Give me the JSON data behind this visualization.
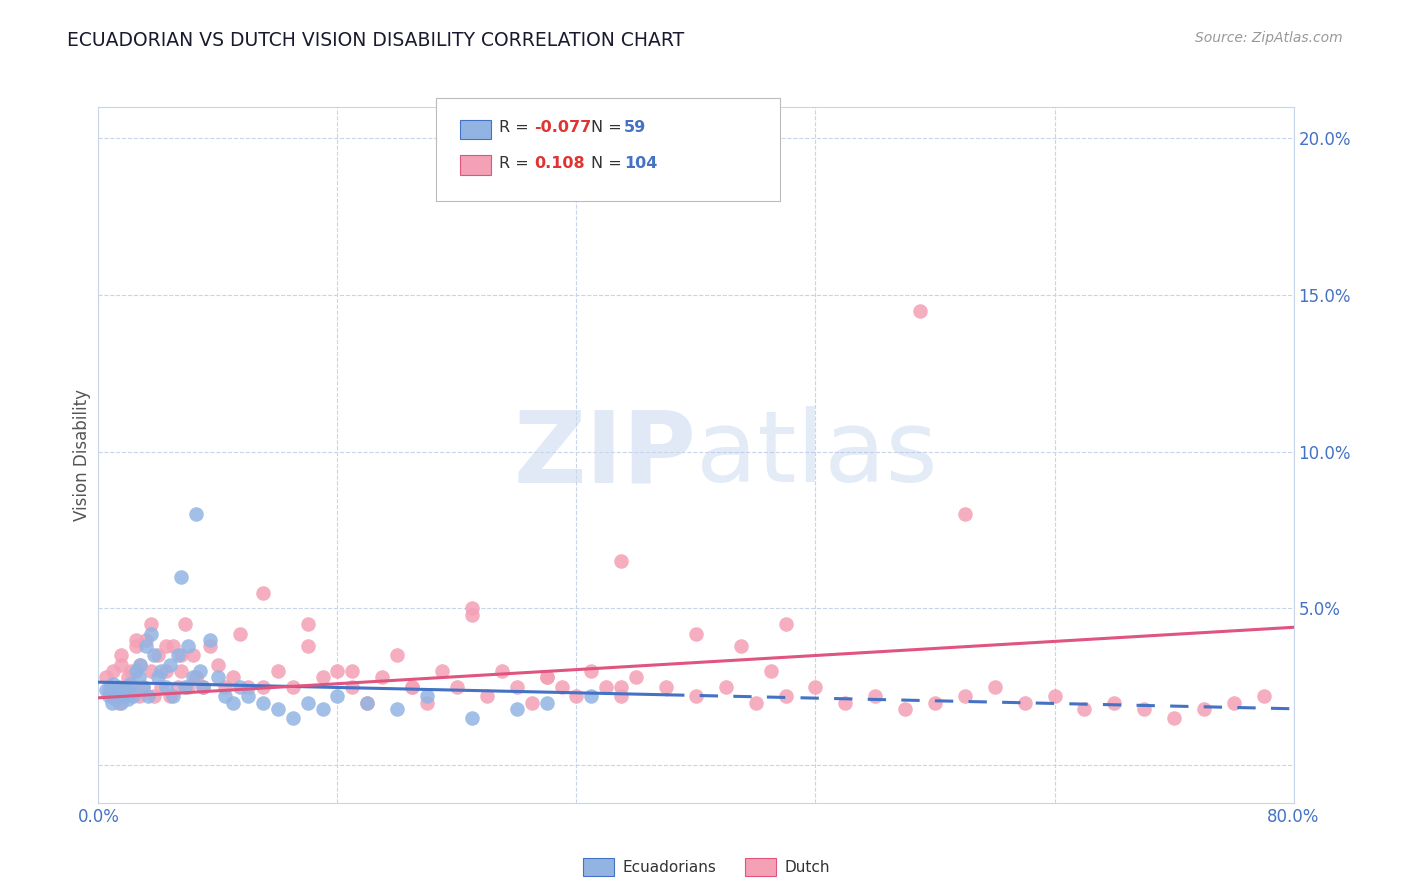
{
  "title": "ECUADORIAN VS DUTCH VISION DISABILITY CORRELATION CHART",
  "source": "Source: ZipAtlas.com",
  "ylabel": "Vision Disability",
  "watermark_zip": "ZIP",
  "watermark_atlas": "atlas",
  "ecuadorians_color": "#92b4e3",
  "dutch_color": "#f4a0b5",
  "trendline_ecu_color": "#4472c4",
  "trendline_dutch_color": "#e05580",
  "background_color": "#ffffff",
  "grid_color": "#c8d4e8",
  "xlim": [
    0.0,
    0.8
  ],
  "ylim": [
    -0.012,
    0.21
  ],
  "ecu_trendline": [
    0.0,
    0.0265,
    0.8,
    0.018
  ],
  "dutch_trendline": [
    0.0,
    0.0215,
    0.8,
    0.044
  ],
  "ecu_x": [
    0.005,
    0.007,
    0.008,
    0.009,
    0.01,
    0.01,
    0.011,
    0.012,
    0.013,
    0.014,
    0.015,
    0.016,
    0.017,
    0.018,
    0.019,
    0.02,
    0.021,
    0.022,
    0.023,
    0.025,
    0.027,
    0.028,
    0.03,
    0.032,
    0.033,
    0.035,
    0.037,
    0.04,
    0.042,
    0.045,
    0.048,
    0.05,
    0.053,
    0.055,
    0.058,
    0.06,
    0.063,
    0.065,
    0.068,
    0.07,
    0.075,
    0.08,
    0.085,
    0.09,
    0.095,
    0.1,
    0.11,
    0.12,
    0.13,
    0.14,
    0.15,
    0.16,
    0.18,
    0.2,
    0.22,
    0.25,
    0.28,
    0.3,
    0.33
  ],
  "ecu_y": [
    0.024,
    0.022,
    0.025,
    0.02,
    0.023,
    0.026,
    0.021,
    0.024,
    0.022,
    0.025,
    0.02,
    0.023,
    0.024,
    0.022,
    0.025,
    0.021,
    0.026,
    0.023,
    0.022,
    0.03,
    0.028,
    0.032,
    0.025,
    0.038,
    0.022,
    0.042,
    0.035,
    0.028,
    0.03,
    0.025,
    0.032,
    0.022,
    0.035,
    0.06,
    0.025,
    0.038,
    0.028,
    0.08,
    0.03,
    0.025,
    0.04,
    0.028,
    0.022,
    0.02,
    0.025,
    0.022,
    0.02,
    0.018,
    0.015,
    0.02,
    0.018,
    0.022,
    0.02,
    0.018,
    0.022,
    0.015,
    0.018,
    0.02,
    0.022
  ],
  "dutch_x": [
    0.005,
    0.007,
    0.009,
    0.01,
    0.012,
    0.014,
    0.015,
    0.017,
    0.018,
    0.02,
    0.022,
    0.024,
    0.025,
    0.027,
    0.028,
    0.03,
    0.032,
    0.035,
    0.037,
    0.04,
    0.042,
    0.045,
    0.048,
    0.05,
    0.053,
    0.055,
    0.058,
    0.06,
    0.063,
    0.065,
    0.07,
    0.075,
    0.08,
    0.085,
    0.09,
    0.095,
    0.1,
    0.11,
    0.12,
    0.13,
    0.14,
    0.15,
    0.16,
    0.17,
    0.18,
    0.19,
    0.2,
    0.21,
    0.22,
    0.23,
    0.24,
    0.25,
    0.26,
    0.27,
    0.28,
    0.29,
    0.3,
    0.31,
    0.32,
    0.33,
    0.34,
    0.35,
    0.36,
    0.38,
    0.4,
    0.42,
    0.44,
    0.46,
    0.48,
    0.5,
    0.52,
    0.54,
    0.56,
    0.58,
    0.6,
    0.62,
    0.64,
    0.66,
    0.68,
    0.7,
    0.72,
    0.74,
    0.76,
    0.78,
    0.015,
    0.025,
    0.035,
    0.045,
    0.055,
    0.065,
    0.11,
    0.14,
    0.17,
    0.21,
    0.25,
    0.3,
    0.35,
    0.45,
    0.55,
    0.58,
    0.35,
    0.4,
    0.43,
    0.46
  ],
  "dutch_y": [
    0.028,
    0.024,
    0.022,
    0.03,
    0.025,
    0.02,
    0.032,
    0.025,
    0.022,
    0.028,
    0.03,
    0.025,
    0.038,
    0.022,
    0.032,
    0.025,
    0.04,
    0.03,
    0.022,
    0.035,
    0.025,
    0.03,
    0.022,
    0.038,
    0.025,
    0.03,
    0.045,
    0.025,
    0.035,
    0.028,
    0.025,
    0.038,
    0.032,
    0.025,
    0.028,
    0.042,
    0.025,
    0.055,
    0.03,
    0.025,
    0.045,
    0.028,
    0.03,
    0.025,
    0.02,
    0.028,
    0.035,
    0.025,
    0.02,
    0.03,
    0.025,
    0.048,
    0.022,
    0.03,
    0.025,
    0.02,
    0.028,
    0.025,
    0.022,
    0.03,
    0.025,
    0.022,
    0.028,
    0.025,
    0.022,
    0.025,
    0.02,
    0.022,
    0.025,
    0.02,
    0.022,
    0.018,
    0.02,
    0.022,
    0.025,
    0.02,
    0.022,
    0.018,
    0.02,
    0.018,
    0.015,
    0.018,
    0.02,
    0.022,
    0.035,
    0.04,
    0.045,
    0.038,
    0.035,
    0.028,
    0.025,
    0.038,
    0.03,
    0.025,
    0.05,
    0.028,
    0.025,
    0.03,
    0.145,
    0.08,
    0.065,
    0.042,
    0.038,
    0.045
  ]
}
